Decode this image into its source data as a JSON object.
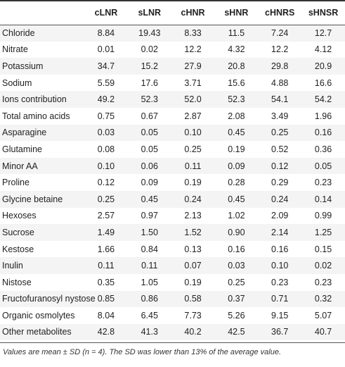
{
  "table": {
    "columns": [
      "",
      "cLNR",
      "sLNR",
      "cHNR",
      "sHNR",
      "cHNRS",
      "sHNSR"
    ],
    "rows": [
      [
        "Chloride",
        "8.84",
        "19.43",
        "8.33",
        "11.5",
        "7.24",
        "12.7"
      ],
      [
        "Nitrate",
        "0.01",
        "0.02",
        "12.2",
        "4.32",
        "12.2",
        "4.12"
      ],
      [
        "Potassium",
        "34.7",
        "15.2",
        "27.9",
        "20.8",
        "29.8",
        "20.9"
      ],
      [
        "Sodium",
        "5.59",
        "17.6",
        "3.71",
        "15.6",
        "4.88",
        "16.6"
      ],
      [
        "Ions contribution",
        "49.2",
        "52.3",
        "52.0",
        "52.3",
        "54.1",
        "54.2"
      ],
      [
        "Total amino acids",
        "0.75",
        "0.67",
        "2.87",
        "2.08",
        "3.49",
        "1.96"
      ],
      [
        "Asparagine",
        "0.03",
        "0.05",
        "0.10",
        "0.45",
        "0.25",
        "0.16"
      ],
      [
        "Glutamine",
        "0.08",
        "0.05",
        "0.25",
        "0.19",
        "0.52",
        "0.36"
      ],
      [
        "Minor AA",
        "0.10",
        "0.06",
        "0.11",
        "0.09",
        "0.12",
        "0.05"
      ],
      [
        "Proline",
        "0.12",
        "0.09",
        "0.19",
        "0.28",
        "0.29",
        "0.23"
      ],
      [
        "Glycine betaine",
        "0.25",
        "0.45",
        "0.24",
        "0.45",
        "0.24",
        "0.14"
      ],
      [
        "Hexoses",
        "2.57",
        "0.97",
        "2.13",
        "1.02",
        "2.09",
        "0.99"
      ],
      [
        "Sucrose",
        "1.49",
        "1.50",
        "1.52",
        "0.90",
        "2.14",
        "1.25"
      ],
      [
        "Kestose",
        "1.66",
        "0.84",
        "0.13",
        "0.16",
        "0.16",
        "0.15"
      ],
      [
        "Inulin",
        "0.11",
        "0.11",
        "0.07",
        "0.03",
        "0.10",
        "0.02"
      ],
      [
        "Nistose",
        "0.35",
        "1.05",
        "0.19",
        "0.25",
        "0.23",
        "0.23"
      ],
      [
        "Fructofuranosyl nystose",
        "0.85",
        "0.86",
        "0.58",
        "0.37",
        "0.71",
        "0.32"
      ],
      [
        "Organic osmolytes",
        "8.04",
        "6.45",
        "7.73",
        "5.26",
        "9.15",
        "5.07"
      ],
      [
        "Other metabolites",
        "42.8",
        "41.3",
        "40.2",
        "42.5",
        "36.7",
        "40.7"
      ]
    ]
  },
  "footnote": "Values are mean ± SD (n = 4). The SD was lower than 13% of the average value.",
  "colors": {
    "stripe": "#f4f4f4",
    "text": "#222222",
    "rule": "#333333"
  }
}
